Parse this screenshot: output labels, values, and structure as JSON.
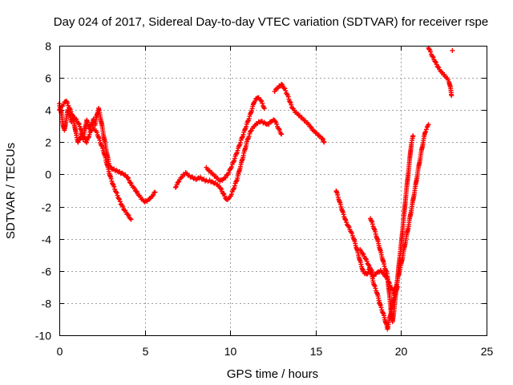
{
  "chart_data": {
    "type": "scatter",
    "title": "Day 024 of 2017, Sidereal Day-to-day VTEC variation (SDTVAR) for receiver rspe",
    "xlabel": "GPS time / hours",
    "ylabel": "SDTVAR / TECUs",
    "xlim": [
      0,
      25
    ],
    "ylim": [
      -10,
      8
    ],
    "xticks": [
      0,
      5,
      10,
      15,
      20,
      25
    ],
    "yticks": [
      -10,
      -8,
      -6,
      -4,
      -2,
      0,
      2,
      4,
      6,
      8
    ],
    "grid": true,
    "marker": "plus",
    "color": "#ff0000",
    "series": [
      {
        "segments": [
          [
            [
              0.0,
              4.4
            ],
            [
              0.1,
              3.9
            ],
            [
              0.2,
              3.2
            ],
            [
              0.3,
              2.7
            ],
            [
              0.4,
              3.4
            ],
            [
              0.5,
              4.0
            ],
            [
              0.6,
              3.7
            ],
            [
              0.7,
              3.3
            ],
            [
              0.8,
              3.6
            ],
            [
              0.9,
              3.0
            ],
            [
              1.0,
              2.4
            ],
            [
              1.1,
              2.0
            ],
            [
              1.2,
              2.2
            ],
            [
              1.3,
              2.6
            ],
            [
              1.4,
              2.2
            ],
            [
              1.5,
              2.8
            ],
            [
              1.6,
              3.4
            ],
            [
              1.7,
              3.0
            ],
            [
              1.8,
              2.8
            ],
            [
              1.9,
              3.2
            ],
            [
              2.0,
              3.4
            ],
            [
              2.1,
              3.1
            ],
            [
              2.2,
              3.7
            ],
            [
              2.3,
              4.1
            ],
            [
              2.4,
              3.6
            ],
            [
              2.5,
              3.0
            ],
            [
              2.6,
              2.4
            ],
            [
              2.7,
              1.8
            ],
            [
              2.8,
              1.2
            ],
            [
              2.9,
              0.7
            ],
            [
              3.0,
              0.4
            ],
            [
              3.2,
              0.3
            ],
            [
              3.4,
              0.2
            ],
            [
              3.6,
              0.1
            ],
            [
              3.8,
              0.0
            ],
            [
              4.0,
              -0.2
            ],
            [
              4.2,
              -0.6
            ],
            [
              4.4,
              -0.9
            ],
            [
              4.6,
              -1.2
            ],
            [
              4.8,
              -1.5
            ],
            [
              5.0,
              -1.7
            ],
            [
              5.2,
              -1.6
            ],
            [
              5.4,
              -1.4
            ],
            [
              5.6,
              -1.1
            ]
          ],
          [
            [
              0.0,
              4.0
            ],
            [
              0.2,
              4.3
            ],
            [
              0.4,
              4.6
            ],
            [
              0.6,
              4.1
            ],
            [
              0.8,
              3.6
            ],
            [
              1.0,
              3.4
            ],
            [
              1.2,
              3.0
            ],
            [
              1.4,
              2.4
            ],
            [
              1.6,
              2.0
            ],
            [
              1.8,
              2.6
            ],
            [
              2.0,
              2.9
            ],
            [
              2.2,
              2.6
            ],
            [
              2.4,
              2.0
            ],
            [
              2.6,
              1.4
            ],
            [
              2.8,
              0.6
            ],
            [
              3.0,
              -0.2
            ],
            [
              3.2,
              -0.8
            ],
            [
              3.4,
              -1.3
            ],
            [
              3.6,
              -1.8
            ],
            [
              3.8,
              -2.2
            ],
            [
              4.0,
              -2.5
            ],
            [
              4.2,
              -2.8
            ]
          ],
          [
            [
              6.8,
              -0.8
            ],
            [
              7.0,
              -0.4
            ],
            [
              7.2,
              -0.1
            ],
            [
              7.4,
              0.1
            ],
            [
              7.6,
              -0.1
            ],
            [
              7.8,
              -0.2
            ],
            [
              8.0,
              -0.3
            ],
            [
              8.2,
              -0.2
            ],
            [
              8.4,
              -0.3
            ],
            [
              8.6,
              -0.4
            ],
            [
              8.8,
              -0.4
            ],
            [
              9.0,
              -0.5
            ],
            [
              9.2,
              -0.6
            ],
            [
              9.4,
              -0.8
            ],
            [
              9.6,
              -1.2
            ],
            [
              9.8,
              -1.6
            ],
            [
              10.0,
              -1.4
            ],
            [
              10.2,
              -0.9
            ],
            [
              10.4,
              -0.3
            ],
            [
              10.6,
              0.5
            ],
            [
              10.8,
              1.3
            ],
            [
              11.0,
              2.1
            ],
            [
              11.2,
              2.7
            ],
            [
              11.4,
              3.0
            ],
            [
              11.6,
              3.2
            ],
            [
              11.8,
              3.3
            ],
            [
              12.0,
              3.2
            ],
            [
              12.2,
              3.1
            ],
            [
              12.4,
              3.3
            ],
            [
              12.6,
              3.4
            ],
            [
              12.8,
              2.9
            ],
            [
              13.0,
              2.5
            ]
          ],
          [
            [
              8.6,
              0.4
            ],
            [
              8.8,
              0.2
            ],
            [
              9.0,
              0.0
            ],
            [
              9.2,
              -0.2
            ],
            [
              9.4,
              -0.4
            ],
            [
              9.6,
              -0.3
            ],
            [
              9.8,
              -0.1
            ],
            [
              10.0,
              0.3
            ],
            [
              10.2,
              0.8
            ],
            [
              10.4,
              1.4
            ],
            [
              10.6,
              2.0
            ],
            [
              10.8,
              2.6
            ],
            [
              11.0,
              3.2
            ],
            [
              11.2,
              3.8
            ],
            [
              11.4,
              4.5
            ],
            [
              11.6,
              4.8
            ],
            [
              11.8,
              4.6
            ],
            [
              12.0,
              4.1
            ]
          ],
          [
            [
              12.6,
              5.2
            ],
            [
              12.8,
              5.4
            ],
            [
              13.0,
              5.6
            ],
            [
              13.2,
              5.3
            ],
            [
              13.4,
              4.8
            ],
            [
              13.6,
              4.2
            ],
            [
              13.8,
              3.9
            ],
            [
              14.0,
              3.7
            ],
            [
              14.2,
              3.5
            ],
            [
              14.4,
              3.3
            ],
            [
              14.6,
              3.1
            ],
            [
              14.8,
              2.8
            ],
            [
              15.0,
              2.6
            ],
            [
              15.2,
              2.4
            ],
            [
              15.4,
              2.2
            ],
            [
              15.5,
              2.0
            ]
          ],
          [
            [
              16.2,
              -1.0
            ],
            [
              16.4,
              -1.7
            ],
            [
              16.6,
              -2.4
            ],
            [
              16.8,
              -3.0
            ],
            [
              17.0,
              -3.4
            ],
            [
              17.2,
              -3.9
            ],
            [
              17.4,
              -4.6
            ],
            [
              17.6,
              -5.4
            ],
            [
              17.8,
              -6.1
            ],
            [
              18.0,
              -6.2
            ],
            [
              18.2,
              -5.8
            ],
            [
              18.4,
              -6.3
            ],
            [
              18.6,
              -6.1
            ],
            [
              18.8,
              -6.0
            ],
            [
              19.0,
              -6.2
            ],
            [
              19.2,
              -6.5
            ],
            [
              19.4,
              -7.0
            ],
            [
              19.6,
              -7.4
            ],
            [
              19.8,
              -7.0
            ]
          ],
          [
            [
              18.2,
              -2.7
            ],
            [
              18.4,
              -3.3
            ],
            [
              18.6,
              -4.0
            ],
            [
              18.8,
              -4.8
            ],
            [
              19.0,
              -5.6
            ],
            [
              19.2,
              -6.3
            ],
            [
              19.3,
              -7.3
            ],
            [
              19.4,
              -8.4
            ],
            [
              19.5,
              -9.2
            ],
            [
              19.6,
              -8.3
            ],
            [
              19.7,
              -7.3
            ],
            [
              19.8,
              -6.4
            ],
            [
              19.9,
              -5.3
            ],
            [
              20.0,
              -4.4
            ],
            [
              20.1,
              -3.3
            ],
            [
              20.2,
              -2.2
            ],
            [
              20.3,
              -1.1
            ],
            [
              20.4,
              -0.1
            ],
            [
              20.5,
              0.9
            ],
            [
              20.6,
              1.9
            ],
            [
              20.7,
              2.4
            ]
          ],
          [
            [
              17.6,
              -4.7
            ],
            [
              17.8,
              -5.0
            ],
            [
              18.0,
              -5.4
            ],
            [
              18.2,
              -5.9
            ],
            [
              18.4,
              -6.8
            ],
            [
              18.6,
              -7.4
            ],
            [
              18.8,
              -8.2
            ],
            [
              19.0,
              -8.8
            ],
            [
              19.2,
              -9.6
            ],
            [
              19.4,
              -8.6
            ],
            [
              19.6,
              -7.5
            ],
            [
              19.8,
              -6.5
            ],
            [
              20.0,
              -5.6
            ],
            [
              20.2,
              -4.5
            ],
            [
              20.4,
              -3.4
            ],
            [
              20.6,
              -2.2
            ],
            [
              20.8,
              -1.0
            ],
            [
              21.0,
              0.3
            ],
            [
              21.2,
              1.5
            ],
            [
              21.4,
              2.6
            ],
            [
              21.6,
              3.1
            ]
          ],
          [
            [
              21.6,
              7.9
            ],
            [
              21.8,
              7.4
            ],
            [
              22.0,
              7.0
            ],
            [
              22.2,
              6.6
            ],
            [
              22.4,
              6.3
            ],
            [
              22.6,
              6.1
            ],
            [
              22.8,
              5.8
            ],
            [
              22.9,
              5.3
            ],
            [
              22.95,
              4.9
            ]
          ],
          [
            [
              23.0,
              7.7
            ]
          ]
        ]
      }
    ]
  }
}
